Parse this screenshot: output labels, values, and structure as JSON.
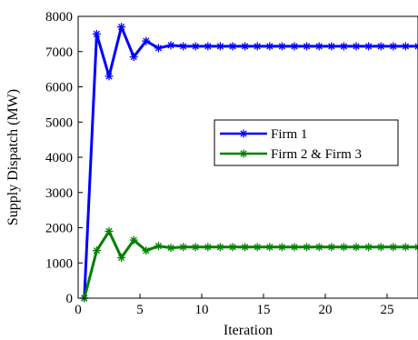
{
  "chart_data": {
    "type": "line",
    "title": "",
    "xlabel": "Iteration",
    "ylabel": "Supply Dispatch (MW)",
    "xlim": [
      0,
      27.5
    ],
    "ylim": [
      0,
      8000
    ],
    "xticks": [
      0,
      5,
      10,
      15,
      20,
      25
    ],
    "yticks": [
      0,
      1000,
      2000,
      3000,
      4000,
      5000,
      6000,
      7000,
      8000
    ],
    "grid": false,
    "legend_position": "center-right",
    "x": [
      0.5,
      1.5,
      2.5,
      3.5,
      4.5,
      5.5,
      6.5,
      7.5,
      8.5,
      9.5,
      10.5,
      11.5,
      12.5,
      13.5,
      14.5,
      15.5,
      16.5,
      17.5,
      18.5,
      19.5,
      20.5,
      21.5,
      22.5,
      23.5,
      24.5,
      25.5,
      26.5,
      27.5
    ],
    "series": [
      {
        "name": "Firm 1",
        "color": "#0000ff",
        "marker": "asterisk",
        "values": [
          0,
          7500,
          6300,
          7700,
          6850,
          7300,
          7100,
          7180,
          7150,
          7150,
          7150,
          7150,
          7150,
          7150,
          7150,
          7150,
          7150,
          7150,
          7150,
          7150,
          7150,
          7150,
          7150,
          7150,
          7150,
          7150,
          7150,
          7150
        ]
      },
      {
        "name": "Firm 2 & Firm 3",
        "color": "#008000",
        "marker": "asterisk",
        "values": [
          0,
          1350,
          1900,
          1150,
          1650,
          1350,
          1480,
          1430,
          1450,
          1450,
          1450,
          1450,
          1450,
          1450,
          1450,
          1450,
          1450,
          1450,
          1450,
          1450,
          1450,
          1450,
          1450,
          1450,
          1450,
          1450,
          1450,
          1450
        ]
      }
    ]
  }
}
